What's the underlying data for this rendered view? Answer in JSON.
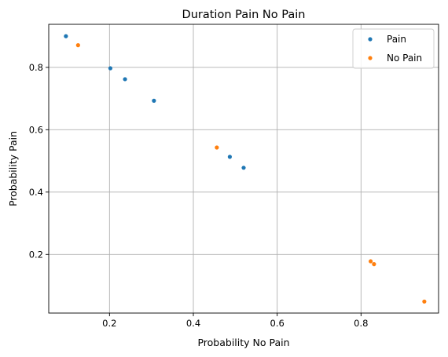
{
  "chart_data": {
    "type": "scatter",
    "title": "Duration Pain No Pain",
    "xlabel": "Probability No Pain",
    "ylabel": "Probability Pain",
    "xlim": [
      0.055,
      0.985
    ],
    "ylim": [
      0.012,
      0.938
    ],
    "xticks": [
      0.2,
      0.4,
      0.6,
      0.8
    ],
    "yticks": [
      0.2,
      0.4,
      0.6,
      0.8
    ],
    "xtick_labels": [
      "0.2",
      "0.4",
      "0.6",
      "0.8"
    ],
    "ytick_labels": [
      "0.2",
      "0.4",
      "0.6",
      "0.8"
    ],
    "grid": true,
    "legend_position": "top-right",
    "series": [
      {
        "name": "Pain",
        "color": "#1f77b4",
        "x": [
          0.096,
          0.202,
          0.237,
          0.306,
          0.487,
          0.52
        ],
        "y": [
          0.9,
          0.797,
          0.762,
          0.693,
          0.513,
          0.478
        ]
      },
      {
        "name": "No Pain",
        "color": "#ff7f0e",
        "x": [
          0.125,
          0.456,
          0.823,
          0.831,
          0.951
        ],
        "y": [
          0.871,
          0.543,
          0.178,
          0.169,
          0.049
        ]
      }
    ]
  }
}
